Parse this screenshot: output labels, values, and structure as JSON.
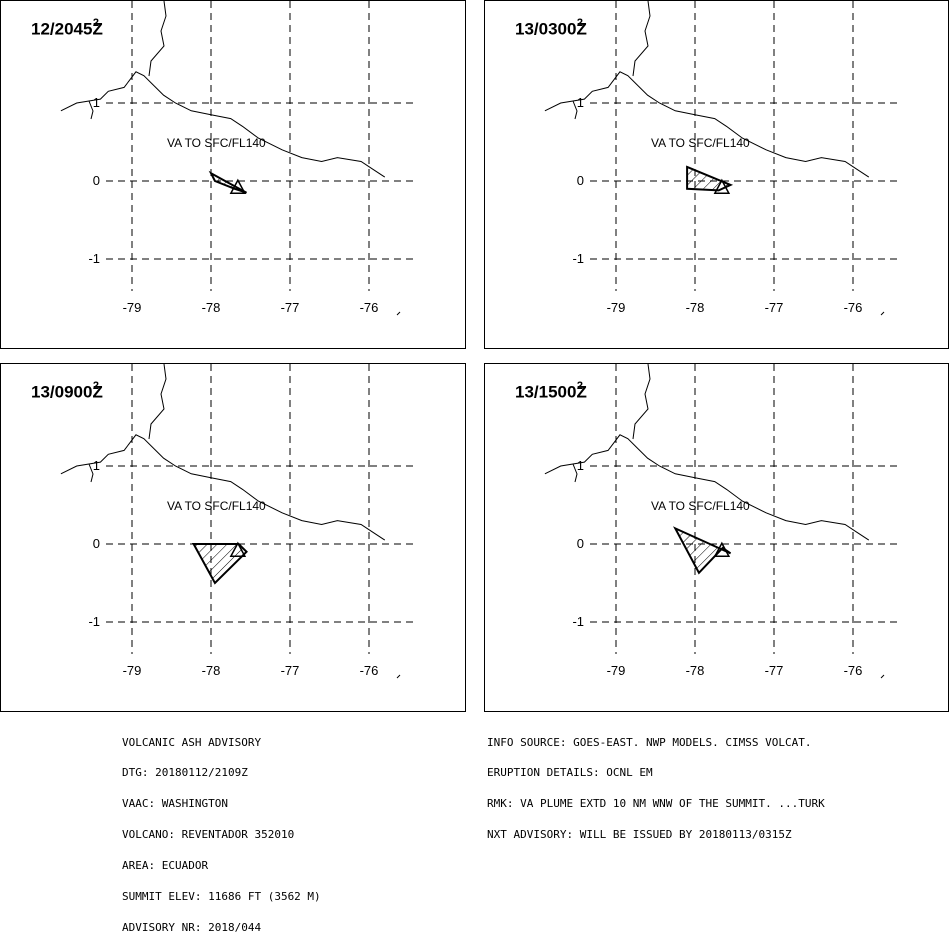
{
  "panels": [
    {
      "time_label": "12/2045Z",
      "note": "2",
      "annotation": "VA TO SFC/FL140",
      "ash_polygon": [
        [
          -78.0,
          0.1
        ],
        [
          -77.55,
          -0.15
        ],
        [
          -77.7,
          -0.1
        ],
        [
          -77.95,
          0.0
        ]
      ]
    },
    {
      "time_label": "13/0300Z",
      "note": "2",
      "annotation": "VA TO SFC/FL140",
      "ash_polygon": [
        [
          -78.1,
          0.18
        ],
        [
          -77.55,
          -0.05
        ],
        [
          -77.7,
          -0.12
        ],
        [
          -78.1,
          -0.1
        ]
      ]
    },
    {
      "time_label": "13/0900Z",
      "note": "2",
      "annotation": "VA TO SFC/FL140",
      "ash_polygon": [
        [
          -78.22,
          0.0
        ],
        [
          -77.65,
          0.0
        ],
        [
          -77.55,
          -0.1
        ],
        [
          -77.95,
          -0.5
        ]
      ]
    },
    {
      "time_label": "13/1500Z",
      "note": "2",
      "annotation": "VA TO SFC/FL140",
      "ash_polygon": [
        [
          -78.25,
          0.2
        ],
        [
          -77.55,
          -0.12
        ],
        [
          -77.65,
          -0.05
        ],
        [
          -77.95,
          -0.37
        ]
      ]
    }
  ],
  "map": {
    "x_ticks": [
      -79,
      -78,
      -77,
      -76
    ],
    "y_ticks": [
      1,
      0,
      -1
    ],
    "volcano_lon": -77.66,
    "volcano_lat": -0.08,
    "border_line": [
      [
        -79.9,
        0.9
      ],
      [
        -79.7,
        1.0
      ],
      [
        -79.4,
        1.05
      ],
      [
        -79.3,
        1.15
      ],
      [
        -79.1,
        1.2
      ],
      [
        -78.95,
        1.4
      ],
      [
        -78.85,
        1.35
      ],
      [
        -78.75,
        1.25
      ],
      [
        -78.6,
        1.1
      ],
      [
        -78.45,
        1.0
      ],
      [
        -78.25,
        0.9
      ],
      [
        -78.0,
        0.85
      ],
      [
        -77.75,
        0.8
      ],
      [
        -77.6,
        0.7
      ],
      [
        -77.4,
        0.55
      ],
      [
        -77.1,
        0.4
      ],
      [
        -76.85,
        0.3
      ],
      [
        -76.6,
        0.25
      ],
      [
        -76.4,
        0.3
      ],
      [
        -76.1,
        0.25
      ],
      [
        -75.95,
        0.15
      ],
      [
        -75.8,
        0.05
      ]
    ]
  },
  "advisory": {
    "left_lines": [
      "VOLCANIC ASH ADVISORY",
      "DTG: 20180112/2109Z",
      "VAAC: WASHINGTON",
      "VOLCANO: REVENTADOR 352010",
      "AREA: ECUADOR",
      "SUMMIT ELEV: 11686 FT (3562 M)",
      "ADVISORY NR: 2018/044"
    ],
    "right_lines": [
      "INFO SOURCE: GOES-EAST. NWP MODELS. CIMSS VOLCAT.",
      "ERUPTION DETAILS: OCNL EM",
      "RMK: VA PLUME EXTD 10 NM WNW OF THE SUMMIT. ...TURK",
      "NXT ADVISORY: WILL BE ISSUED BY 20180113/0315Z"
    ]
  }
}
